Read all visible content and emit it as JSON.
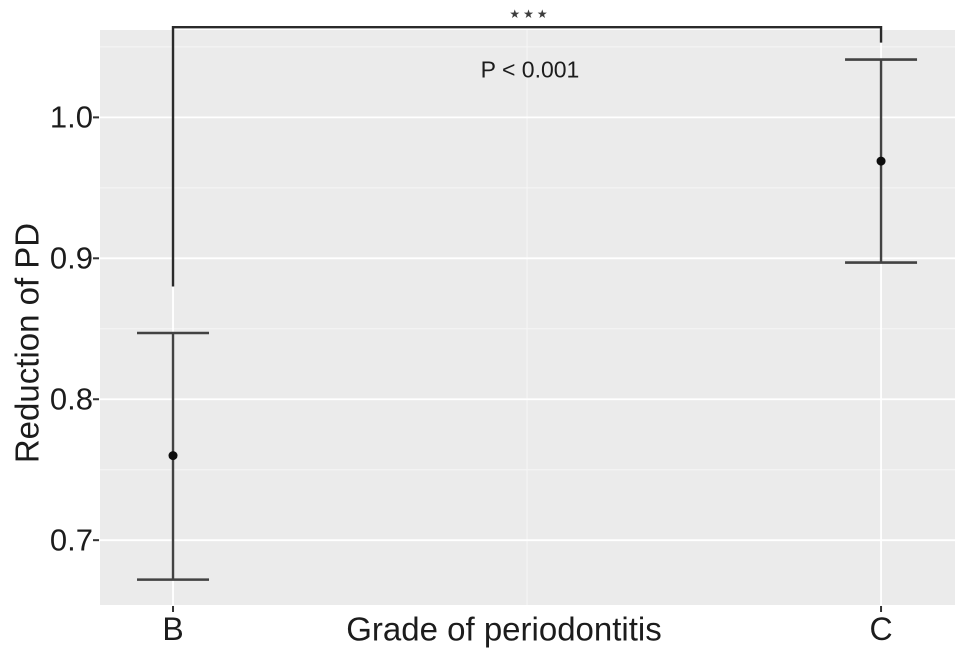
{
  "chart_data": {
    "type": "scatter",
    "subtype": "point-with-error-bars",
    "title": "",
    "xlabel": "Grade of periodontitis",
    "ylabel": "Reduction of PD",
    "categories": [
      "B",
      "C"
    ],
    "points": [
      {
        "category": "B",
        "mean": 0.76,
        "lower": 0.672,
        "upper": 0.847
      },
      {
        "category": "C",
        "mean": 0.969,
        "lower": 0.897,
        "upper": 1.041
      }
    ],
    "yticks": [
      0.7,
      0.8,
      0.9,
      1.0
    ],
    "ylim": [
      0.654,
      1.062
    ],
    "grid": "on",
    "legend": "none",
    "significance": {
      "label": "***",
      "glyph": "★★★",
      "p_text": "P < 0.001",
      "bracket": {
        "from": "B",
        "to": "C",
        "top": 1.064,
        "left_end": 0.88,
        "right_end": 1.053
      }
    },
    "colors": {
      "panel_bg": "#ebebeb",
      "grid_major": "#ffffff",
      "grid_minor": "#f6f6f6",
      "errorbar": "#424242",
      "point": "#0d0d0d",
      "bracket": "#2a2a2a",
      "tick": "#333333",
      "text": "#1c1c1c"
    }
  }
}
